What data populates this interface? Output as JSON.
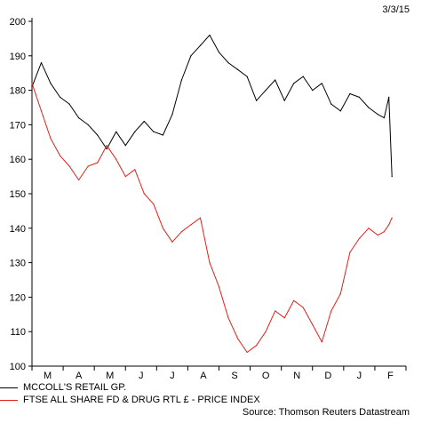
{
  "date_label": "3/3/15",
  "source": "Source: Thomson Reuters Datastream",
  "legend": [
    {
      "label": "MCCOLL'S RETAIL GP.",
      "color": "#000000"
    },
    {
      "label": "FTSE ALL SHARE FD & DRUG RTL £ - PRICE INDEX",
      "color": "#e0201b"
    }
  ],
  "chart_data": {
    "type": "line",
    "title": "",
    "xlabel": "",
    "ylabel": "",
    "x_categories": [
      "M",
      "A",
      "M",
      "J",
      "J",
      "A",
      "S",
      "O",
      "N",
      "D",
      "J",
      "F"
    ],
    "ylim": [
      100,
      200
    ],
    "yticks": [
      100,
      110,
      120,
      130,
      140,
      150,
      160,
      170,
      180,
      190,
      200
    ],
    "grid": false,
    "series": [
      {
        "name": "MCCOLL'S RETAIL GP.",
        "color": "#000000",
        "x": [
          0,
          0.3,
          0.6,
          0.9,
          1.2,
          1.5,
          1.8,
          2.1,
          2.4,
          2.7,
          3.0,
          3.3,
          3.6,
          3.9,
          4.2,
          4.5,
          4.8,
          5.1,
          5.4,
          5.7,
          6.0,
          6.3,
          6.6,
          6.9,
          7.2,
          7.5,
          7.8,
          8.1,
          8.4,
          8.7,
          9.0,
          9.3,
          9.6,
          9.9,
          10.2,
          10.5,
          10.8,
          11.1,
          11.3,
          11.45,
          11.55
        ],
        "values": [
          181,
          188,
          182,
          178,
          176,
          172,
          170,
          167,
          163,
          168,
          164,
          168,
          171,
          168,
          167,
          173,
          183,
          190,
          193,
          196,
          191,
          188,
          186,
          184,
          177,
          180,
          183,
          177,
          182,
          184,
          180,
          182,
          176,
          174,
          179,
          178,
          175,
          173,
          172,
          178,
          155
        ]
      },
      {
        "name": "FTSE ALL SHARE FD & DRUG RTL £ - PRICE INDEX",
        "color": "#e0201b",
        "x": [
          0,
          0.3,
          0.6,
          0.9,
          1.2,
          1.5,
          1.8,
          2.1,
          2.4,
          2.7,
          3.0,
          3.3,
          3.6,
          3.9,
          4.2,
          4.5,
          4.8,
          5.1,
          5.4,
          5.7,
          6.0,
          6.3,
          6.6,
          6.9,
          7.2,
          7.5,
          7.8,
          8.1,
          8.4,
          8.7,
          9.0,
          9.3,
          9.6,
          9.9,
          10.2,
          10.5,
          10.8,
          11.1,
          11.3,
          11.45,
          11.55
        ],
        "values": [
          182,
          174,
          166,
          161,
          158,
          154,
          158,
          159,
          164,
          160,
          155,
          157,
          150,
          147,
          140,
          136,
          139,
          141,
          143,
          130,
          123,
          114,
          108,
          104,
          106,
          110,
          116,
          114,
          119,
          117,
          112,
          107,
          116,
          121,
          133,
          137,
          140,
          138,
          139,
          141,
          143
        ]
      }
    ]
  }
}
